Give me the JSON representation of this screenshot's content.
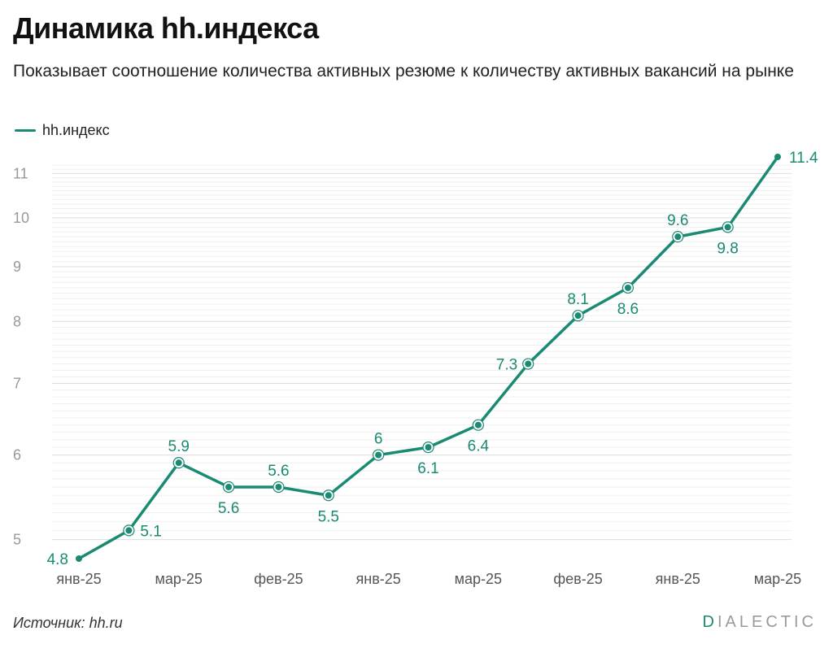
{
  "header": {
    "title": "Динамика hh.индекса",
    "subtitle": "Показывает соотношение количества активных резюме к количеству активных вакансий на рынке"
  },
  "footer": {
    "source": "Источник: hh.ru",
    "brand_first": "D",
    "brand_rest": "IALECTIC"
  },
  "colors": {
    "line": "#1a8a73",
    "grid": "#e6e6e6",
    "axis_text": "#999999"
  },
  "chart_data": {
    "type": "line",
    "title": "Динамика hh.индекса",
    "xlabel": "",
    "ylabel": "",
    "scale": "log",
    "ylim": [
      4.8,
      11.4
    ],
    "y_ticks": [
      5,
      6,
      7,
      8,
      9,
      10,
      11
    ],
    "x_tick_labels": [
      "янв-25",
      "мар-25",
      "фев-25",
      "янв-25",
      "мар-25",
      "фев-25",
      "янв-25",
      "мар-25"
    ],
    "legend": "top-left",
    "series": [
      {
        "name": "hh.индекс",
        "values": [
          4.8,
          5.1,
          5.9,
          5.6,
          5.6,
          5.5,
          6,
          6.1,
          6.4,
          7.3,
          8.1,
          8.6,
          9.6,
          9.8,
          11.4
        ],
        "labels": [
          "4.8",
          "5.1",
          "5.9",
          "5.6",
          "5.6",
          "5.5",
          "6",
          "6.1",
          "6.4",
          "7.3",
          "8.1",
          "8.6",
          "9.6",
          "9.8",
          "11.4"
        ],
        "label_positions": [
          "left",
          "right",
          "above",
          "below",
          "above",
          "below",
          "above",
          "below",
          "below",
          "left",
          "above",
          "below",
          "above",
          "below",
          "right"
        ]
      }
    ]
  }
}
